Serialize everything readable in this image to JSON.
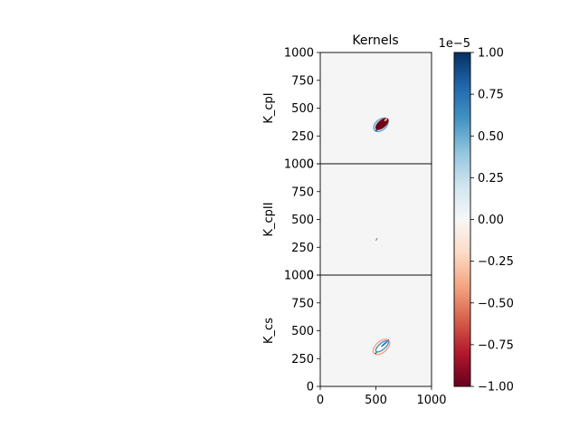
{
  "chart_data": {
    "type": "heatmap",
    "title": "Kernels",
    "xlim": [
      0,
      1000
    ],
    "ylim": [
      0,
      1000
    ],
    "x_ticks": [
      "0",
      "500",
      "1000"
    ],
    "y_ticks": [
      "0",
      "250",
      "500",
      "750",
      "1000"
    ],
    "panels": [
      {
        "ylabel": "K_cpI",
        "features": [
          {
            "kind": "ellipse",
            "cx": 545,
            "cy": 350,
            "rx": 75,
            "ry": 48,
            "angle": 40,
            "color": "#cfe3ee",
            "stroke": "#6aa8d0"
          },
          {
            "kind": "ellipse",
            "cx": 555,
            "cy": 358,
            "rx": 72,
            "ry": 36,
            "angle": 40,
            "color": "#6e0516"
          },
          {
            "kind": "ellipse",
            "cx": 588,
            "cy": 395,
            "rx": 16,
            "ry": 9,
            "angle": 40,
            "color": "#f4a482"
          },
          {
            "kind": "ellipse",
            "cx": 505,
            "cy": 300,
            "rx": 9,
            "ry": 6,
            "angle": 40,
            "color": "#053061"
          }
        ]
      },
      {
        "ylabel": "K_cpII",
        "features": [
          {
            "kind": "ellipse",
            "cx": 505,
            "cy": 320,
            "rx": 12,
            "ry": 3,
            "angle": 70,
            "color": "#67001f"
          },
          {
            "kind": "ellipse",
            "cx": 512,
            "cy": 330,
            "rx": 4,
            "ry": 3,
            "angle": 0,
            "color": "#4393c3"
          }
        ]
      },
      {
        "ylabel": "K_cs",
        "features": [
          {
            "kind": "ellipse",
            "cx": 550,
            "cy": 355,
            "rx": 88,
            "ry": 50,
            "angle": 40,
            "color": "none",
            "stroke": "#f4a582"
          },
          {
            "kind": "ellipse",
            "cx": 556,
            "cy": 360,
            "rx": 70,
            "ry": 28,
            "angle": 40,
            "color": "#ffffff",
            "stroke": "#4393c3"
          },
          {
            "kind": "ellipse",
            "cx": 575,
            "cy": 380,
            "rx": 38,
            "ry": 7,
            "angle": 40,
            "color": "#2166ac"
          },
          {
            "kind": "ellipse",
            "cx": 500,
            "cy": 300,
            "rx": 9,
            "ry": 5,
            "angle": 40,
            "color": "#053061"
          },
          {
            "kind": "ellipse",
            "cx": 612,
            "cy": 415,
            "rx": 7,
            "ry": 4,
            "angle": 40,
            "color": "#b2182b"
          }
        ]
      }
    ],
    "colorbar": {
      "colormap": "RdBu",
      "min": -1.0,
      "max": 1.0,
      "ticks": [
        "1.00",
        "0.75",
        "0.50",
        "0.25",
        "0.00",
        "−0.25",
        "−0.50",
        "−0.75",
        "−1.00"
      ],
      "tick_values": [
        1.0,
        0.75,
        0.5,
        0.25,
        0.0,
        -0.25,
        -0.5,
        -0.75,
        -1.0
      ],
      "offset_label": "1e−5"
    },
    "background_color": "#f5f5f5"
  }
}
